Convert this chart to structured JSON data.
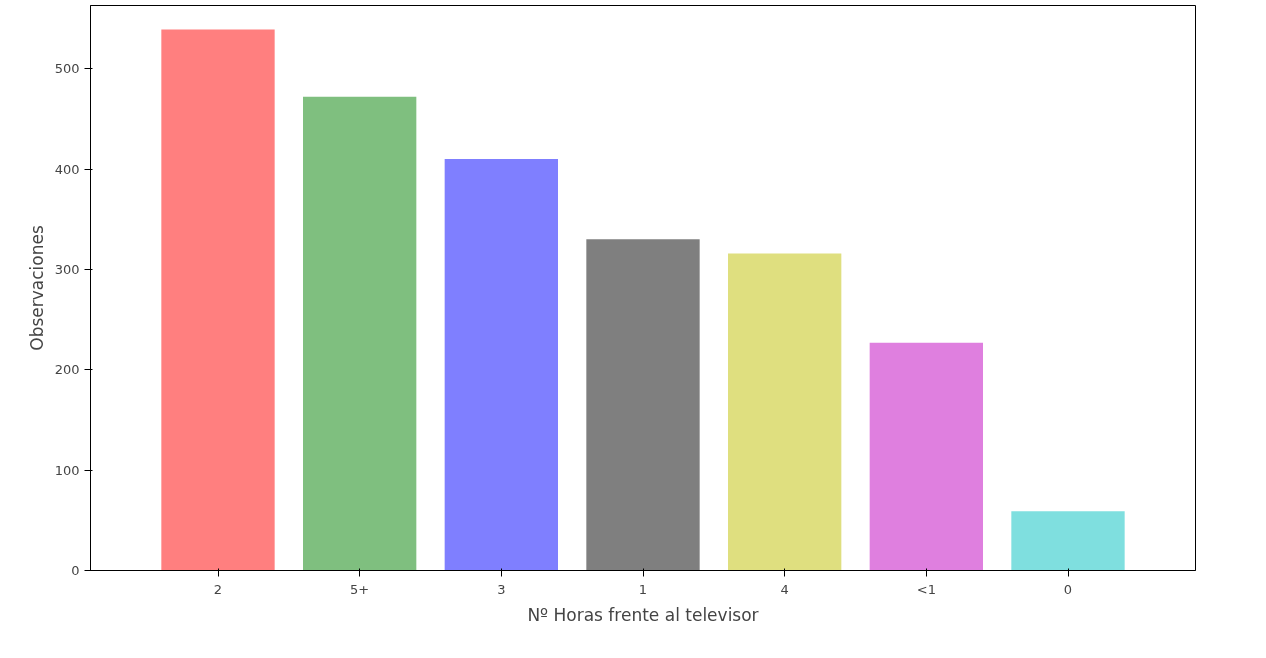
{
  "chart_data": {
    "type": "bar",
    "xlabel": "Nº Horas frente al televisor",
    "ylabel": "Observaciones",
    "categories": [
      "2",
      "5+",
      "3",
      "1",
      "4",
      "<1",
      "0"
    ],
    "values": [
      539,
      472,
      410,
      330,
      316,
      227,
      59
    ],
    "colors": [
      "#ff7f7f",
      "#7fbf7f",
      "#7f7fff",
      "#7f7f7f",
      "#dfdf7f",
      "#df7fdf",
      "#7fdfdf"
    ],
    "ylim": [
      0,
      563
    ],
    "yticks": [
      0,
      100,
      200,
      300,
      400,
      500
    ],
    "grid": false
  }
}
